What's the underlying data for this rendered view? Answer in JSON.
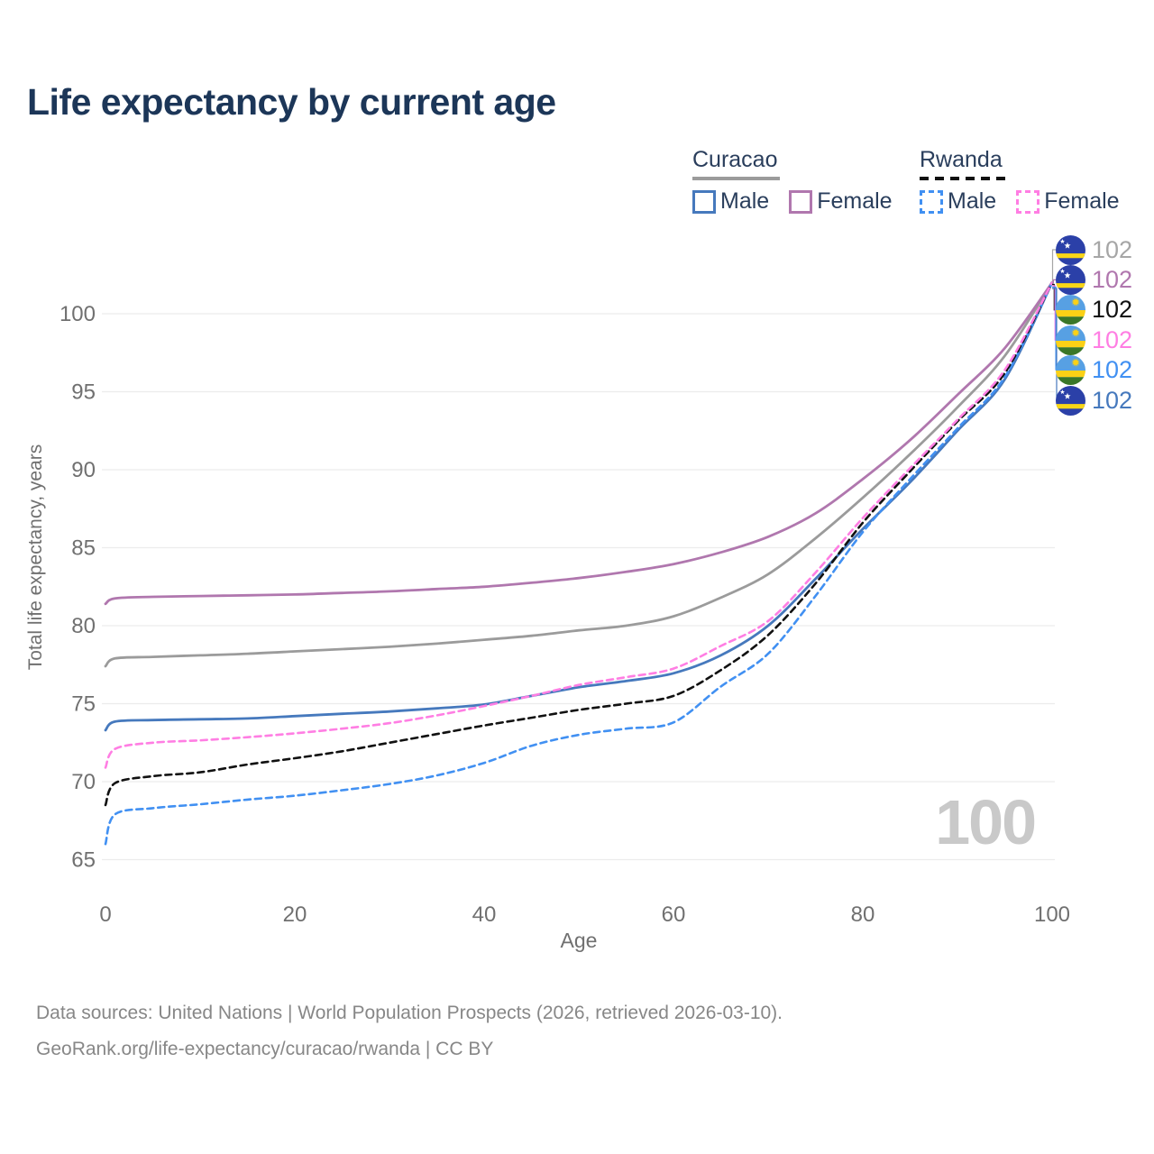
{
  "title": "Life expectancy by current age",
  "legend": {
    "groups": [
      {
        "label": "Curacao",
        "line_style": "solid",
        "line_color": "#9b9b9b",
        "items": [
          {
            "label": "Male",
            "color": "#4679bd",
            "dashed": false
          },
          {
            "label": "Female",
            "color": "#b077ae",
            "dashed": false
          }
        ]
      },
      {
        "label": "Rwanda",
        "line_style": "dashed",
        "line_color": "#111111",
        "items": [
          {
            "label": "Male",
            "color": "#4190f2",
            "dashed": true
          },
          {
            "label": "Female",
            "color": "#ff7ee3",
            "dashed": true
          }
        ]
      }
    ]
  },
  "chart_data": {
    "type": "line",
    "title": "Life expectancy by current age",
    "xlabel": "Age",
    "ylabel": "Total life expectancy, years",
    "xlim": [
      0,
      100
    ],
    "ylim": [
      65,
      102
    ],
    "xticks": [
      0,
      20,
      40,
      60,
      80,
      100
    ],
    "yticks": [
      65,
      70,
      75,
      80,
      85,
      90,
      95,
      100
    ],
    "grid": "horizontal",
    "legend_position": "top-right",
    "x": [
      0,
      1,
      5,
      10,
      15,
      20,
      25,
      30,
      35,
      40,
      45,
      50,
      55,
      60,
      65,
      70,
      75,
      80,
      85,
      90,
      95,
      100
    ],
    "series": [
      {
        "name": "Curacao (both sexes)",
        "country": "Curacao",
        "sex": "Both",
        "color": "#9b9b9b",
        "dashed": false,
        "values": [
          77.4,
          77.9,
          78.0,
          78.1,
          78.2,
          78.35,
          78.5,
          78.65,
          78.85,
          79.1,
          79.35,
          79.7,
          80.0,
          80.6,
          81.8,
          83.3,
          85.6,
          88.2,
          91.0,
          94.0,
          97.3,
          102
        ]
      },
      {
        "name": "Curacao Female",
        "country": "Curacao",
        "sex": "Female",
        "color": "#b077ae",
        "dashed": false,
        "values": [
          81.4,
          81.75,
          81.85,
          81.9,
          81.95,
          82.0,
          82.1,
          82.2,
          82.35,
          82.5,
          82.75,
          83.05,
          83.45,
          83.95,
          84.7,
          85.7,
          87.2,
          89.4,
          91.9,
          94.8,
          97.8,
          102
        ]
      },
      {
        "name": "Curacao Male",
        "country": "Curacao",
        "sex": "Male",
        "color": "#4679bd",
        "dashed": false,
        "values": [
          73.3,
          73.85,
          73.95,
          74.0,
          74.05,
          74.2,
          74.35,
          74.5,
          74.7,
          74.95,
          75.5,
          76.05,
          76.45,
          76.95,
          78.1,
          80.0,
          83.0,
          86.2,
          89.2,
          92.5,
          95.8,
          102
        ]
      },
      {
        "name": "Rwanda Male",
        "country": "Rwanda",
        "sex": "Male",
        "color": "#4190f2",
        "dashed": true,
        "values": [
          66.0,
          67.9,
          68.3,
          68.55,
          68.85,
          69.1,
          69.45,
          69.85,
          70.4,
          71.2,
          72.3,
          73.0,
          73.4,
          73.8,
          76.1,
          78.2,
          81.9,
          86.0,
          89.4,
          92.65,
          95.95,
          102
        ]
      },
      {
        "name": "Rwanda (both sexes)",
        "country": "Rwanda",
        "sex": "Both",
        "color": "#111111",
        "dashed": true,
        "values": [
          68.5,
          69.9,
          70.35,
          70.6,
          71.1,
          71.5,
          71.95,
          72.5,
          73.05,
          73.6,
          74.1,
          74.6,
          75.0,
          75.5,
          77.15,
          79.4,
          82.7,
          86.6,
          89.9,
          93.1,
          96.2,
          102
        ]
      },
      {
        "name": "Rwanda Female",
        "country": "Rwanda",
        "sex": "Female",
        "color": "#ff7ee3",
        "dashed": true,
        "values": [
          70.9,
          72.1,
          72.5,
          72.65,
          72.85,
          73.1,
          73.4,
          73.75,
          74.25,
          74.85,
          75.5,
          76.2,
          76.7,
          77.25,
          78.7,
          80.3,
          83.4,
          86.9,
          90.1,
          93.2,
          96.4,
          102
        ]
      }
    ],
    "end_labels": [
      {
        "flag": "curacao",
        "series": "Curacao (both sexes)",
        "value": "102",
        "color": "#a6a6a6"
      },
      {
        "flag": "curacao",
        "series": "Curacao Female",
        "value": "102",
        "color": "#b077ae"
      },
      {
        "flag": "rwanda",
        "series": "Rwanda (both sexes)",
        "value": "102",
        "color": "#111111"
      },
      {
        "flag": "rwanda",
        "series": "Rwanda Female",
        "value": "102",
        "color": "#ff7ee3"
      },
      {
        "flag": "rwanda",
        "series": "Rwanda Male",
        "value": "102",
        "color": "#4190f2"
      },
      {
        "flag": "curacao",
        "series": "Curacao Male",
        "value": "102",
        "color": "#4679bd"
      }
    ],
    "hover_age_watermark": "100",
    "flag_colors": {
      "curacao": {
        "field": "#2b40a8",
        "stripe": "#f9d616",
        "star": "#ffffff"
      },
      "rwanda": {
        "blue": "#57a0e3",
        "yellow": "#fbd116",
        "green": "#3a7728",
        "sun": "#fbd116"
      }
    }
  },
  "footer": {
    "line1": "Data sources: United Nations | World Population Prospects (2026, retrieved 2026-03-10).",
    "line2": "GeoRank.org/life-expectancy/curacao/rwanda | CC BY"
  }
}
